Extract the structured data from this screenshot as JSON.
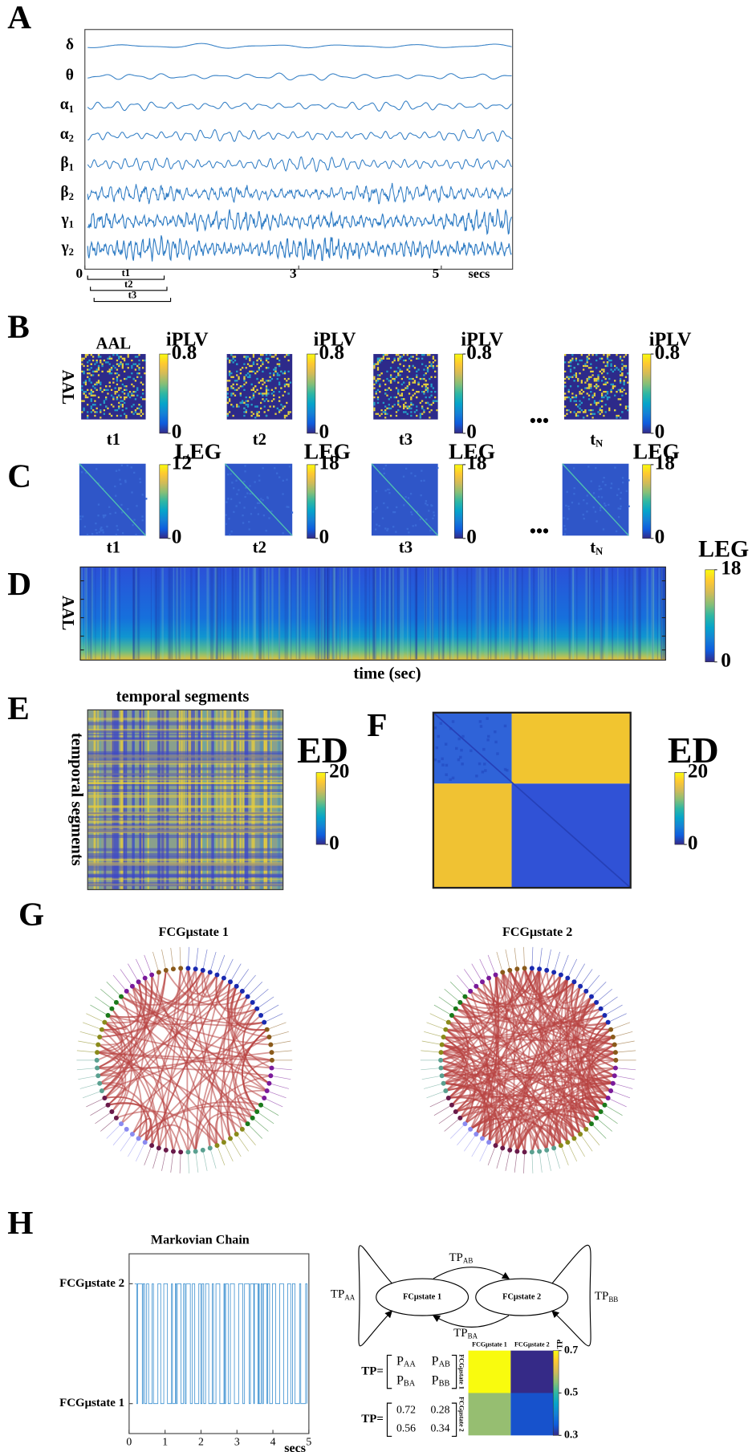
{
  "panel_labels": [
    "A",
    "B",
    "C",
    "D",
    "E",
    "F",
    "G",
    "H"
  ],
  "A": {
    "bands": [
      {
        "base": "δ"
      },
      {
        "base": "θ"
      },
      {
        "base": "α",
        "sub": "1"
      },
      {
        "base": "α",
        "sub": "2"
      },
      {
        "base": "β",
        "sub": "1"
      },
      {
        "base": "β",
        "sub": "2"
      },
      {
        "base": "γ",
        "sub": "1"
      },
      {
        "base": "γ",
        "sub": "2"
      }
    ],
    "xlim": [
      0,
      6
    ],
    "xticks": [
      0,
      3,
      5
    ],
    "x_unit": "secs",
    "windows": [
      "t1",
      "t2",
      "t3"
    ]
  },
  "B": {
    "matrix_label": "AAL",
    "colorbar_title": "iPLV",
    "ellipsis": "•••",
    "snapshots": [
      {
        "label": "t1",
        "clim": [
          0,
          0.8
        ],
        "cticks": [
          0,
          0.8
        ]
      },
      {
        "label": "t2",
        "clim": [
          0,
          0.8
        ],
        "cticks": [
          0,
          0.8
        ]
      },
      {
        "label": "t3",
        "clim": [
          0,
          0.8
        ],
        "cticks": [
          0,
          0.8
        ]
      },
      {
        "label": "t",
        "label_sub": "N",
        "clim": [
          0,
          0.8
        ],
        "cticks": [
          0,
          0.8
        ]
      }
    ]
  },
  "C": {
    "colorbar_title": "LEG",
    "ellipsis": "•••",
    "snapshots": [
      {
        "label": "t1",
        "clim": [
          0,
          12
        ],
        "cticks": [
          0,
          12
        ]
      },
      {
        "label": "t2",
        "clim": [
          0,
          18
        ],
        "cticks": [
          0,
          18
        ]
      },
      {
        "label": "t3",
        "clim": [
          0,
          18
        ],
        "cticks": [
          0,
          18
        ]
      },
      {
        "label": "t",
        "label_sub": "N",
        "clim": [
          0,
          18
        ],
        "cticks": [
          0,
          18
        ]
      }
    ]
  },
  "D": {
    "ylabel": "AAL",
    "xlabel": "time (sec)",
    "colorbar_title": "LEG",
    "clim": [
      0,
      18
    ],
    "cticks": [
      0,
      18
    ]
  },
  "E": {
    "title": "temporal segments",
    "ylabel": "temporal segments",
    "colorbar_title": "ED",
    "clim": [
      0,
      20
    ],
    "cticks": [
      0,
      20
    ]
  },
  "F": {
    "colorbar_title": "ED",
    "clim": [
      0,
      20
    ],
    "cticks": [
      0,
      20
    ]
  },
  "G": {
    "graphs": [
      {
        "title": "FCGμstate  1"
      },
      {
        "title": "FCGμstate  2"
      }
    ]
  },
  "H": {
    "title": "Markovian Chain",
    "xlim": [
      0,
      5
    ],
    "xticks": [
      0,
      1,
      2,
      3,
      4,
      5
    ],
    "x_unit": "secs",
    "ylim": [
      0.75,
      2.25
    ],
    "yticks": [
      {
        "value": 1,
        "label": "FCGμstate 1"
      },
      {
        "value": 2,
        "label": "FCGμstate 2"
      }
    ],
    "nodes": [
      "FCμstate 1",
      "FCμstate 2"
    ],
    "edges": {
      "AB": {
        "base": "TP",
        "sub": "AB"
      },
      "AA": {
        "base": "TP",
        "sub": "AA"
      },
      "BB": {
        "base": "TP",
        "sub": "BB"
      },
      "BA": {
        "base": "TP",
        "sub": "BA"
      }
    },
    "matrix_lhs": "TP=",
    "symbolic": [
      [
        {
          "base": "P",
          "sub": "AA"
        },
        {
          "base": "P",
          "sub": "AB"
        }
      ],
      [
        {
          "base": "P",
          "sub": "BA"
        },
        {
          "base": "P",
          "sub": "BB"
        }
      ]
    ],
    "tp": [
      [
        0.72,
        0.28
      ],
      [
        0.56,
        0.34
      ]
    ],
    "heatmap": {
      "labels": [
        "FCGμstate 1",
        "FCGμstate 2"
      ],
      "colorbar_title": "TP",
      "clim": [
        0.3,
        0.7
      ],
      "cticks": [
        0.3,
        0.5,
        0.7
      ]
    }
  }
}
